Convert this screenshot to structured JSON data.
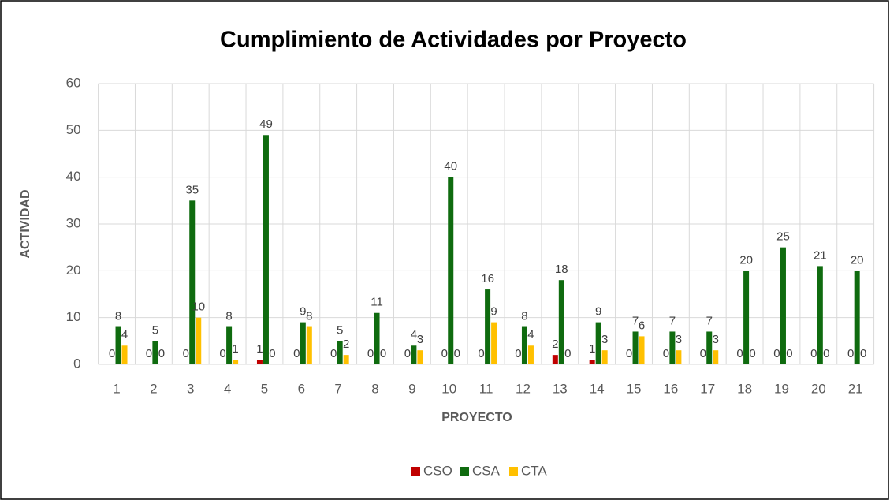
{
  "chart_data": {
    "type": "bar",
    "title": "Cumplimiento de Actividades por Proyecto",
    "x_label": "PROYECTO",
    "y_label": "ACTIVIDAD",
    "categories": [
      "1",
      "2",
      "3",
      "4",
      "5",
      "6",
      "7",
      "8",
      "9",
      "10",
      "11",
      "12",
      "13",
      "14",
      "15",
      "16",
      "17",
      "18",
      "19",
      "20",
      "21"
    ],
    "series": [
      {
        "name": "CSO",
        "color": "#c00000",
        "values": [
          0,
          0,
          0,
          0,
          1,
          0,
          0,
          0,
          0,
          0,
          0,
          0,
          2,
          1,
          0,
          0,
          0,
          0,
          0,
          0,
          0
        ]
      },
      {
        "name": "CSA",
        "color": "#0f6b0f",
        "values": [
          8,
          5,
          35,
          8,
          49,
          9,
          5,
          11,
          4,
          40,
          16,
          8,
          18,
          9,
          7,
          7,
          7,
          20,
          25,
          21,
          20
        ]
      },
      {
        "name": "CTA",
        "color": "#ffc000",
        "values": [
          4,
          0,
          10,
          1,
          0,
          8,
          2,
          0,
          3,
          0,
          9,
          4,
          0,
          3,
          6,
          3,
          3,
          0,
          0,
          0,
          0
        ]
      }
    ],
    "ylim": [
      0,
      60
    ],
    "yticks": [
      0,
      10,
      20,
      30,
      40,
      50,
      60
    ],
    "grid": true,
    "legend": "bottom"
  }
}
